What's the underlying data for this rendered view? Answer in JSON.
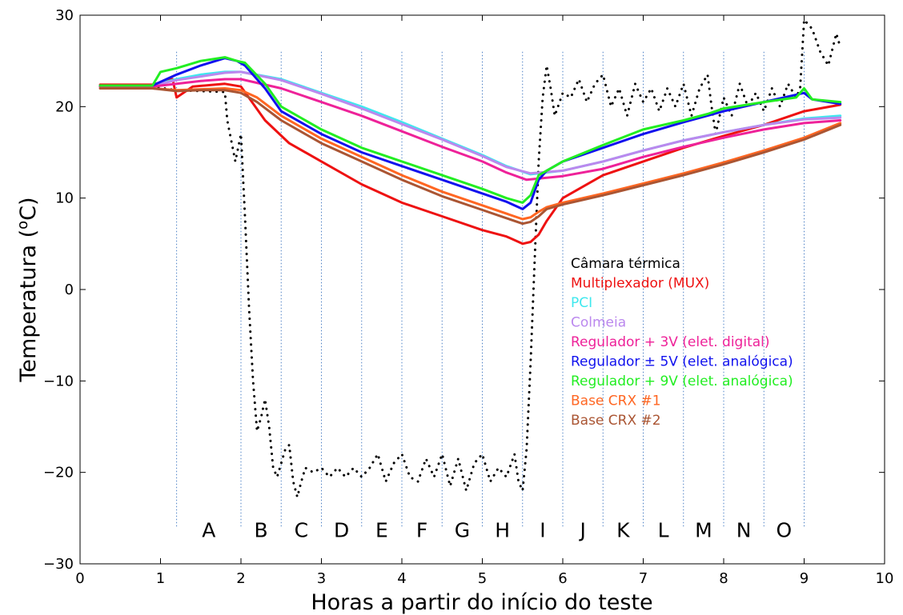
{
  "chart_data": {
    "type": "line",
    "title": "",
    "xlabel": "Horas a partir do início do teste",
    "ylabel_main": "Temperatura (",
    "ylabel_sup": "o",
    "ylabel_tail": "C)",
    "xlim": [
      0,
      10
    ],
    "ylim": [
      -30,
      30
    ],
    "xticks": [
      "0",
      "1",
      "2",
      "3",
      "4",
      "5",
      "6",
      "7",
      "8",
      "9",
      "10"
    ],
    "yticks": [
      "−30",
      "−20",
      "−10",
      "0",
      "10",
      "20",
      "30"
    ],
    "grid": false,
    "phase_boundaries_h": [
      1.2,
      2.0,
      2.5,
      3.0,
      3.5,
      4.0,
      4.5,
      5.0,
      5.5,
      6.0,
      6.5,
      7.0,
      7.5,
      8.0,
      8.5,
      9.0
    ],
    "phase_labels": [
      {
        "label": "A",
        "x": 1.6
      },
      {
        "label": "B",
        "x": 2.25
      },
      {
        "label": "C",
        "x": 2.75
      },
      {
        "label": "D",
        "x": 3.25
      },
      {
        "label": "E",
        "x": 3.75
      },
      {
        "label": "F",
        "x": 4.25
      },
      {
        "label": "G",
        "x": 4.75
      },
      {
        "label": "H",
        "x": 5.25
      },
      {
        "label": "I",
        "x": 5.75
      },
      {
        "label": "J",
        "x": 6.25
      },
      {
        "label": "K",
        "x": 6.75
      },
      {
        "label": "L",
        "x": 7.25
      },
      {
        "label": "M",
        "x": 7.75
      },
      {
        "label": "N",
        "x": 8.25
      },
      {
        "label": "O",
        "x": 8.75
      }
    ],
    "phase_label_y": -26.3,
    "legend_placement": "center-right",
    "series": [
      {
        "name": "Câmara térmica",
        "color": "#000000",
        "style": "dotted",
        "x": [
          0.25,
          0.9,
          1.2,
          1.5,
          1.8,
          1.83,
          1.93,
          2.0,
          2.05,
          2.1,
          2.15,
          2.2,
          2.25,
          2.3,
          2.35,
          2.4,
          2.45,
          2.5,
          2.55,
          2.6,
          2.65,
          2.7,
          2.75,
          2.8,
          2.9,
          3.0,
          3.1,
          3.2,
          3.3,
          3.4,
          3.5,
          3.6,
          3.7,
          3.8,
          3.9,
          4.0,
          4.1,
          4.2,
          4.3,
          4.4,
          4.5,
          4.6,
          4.7,
          4.8,
          4.9,
          5.0,
          5.1,
          5.2,
          5.3,
          5.4,
          5.45,
          5.5,
          5.55,
          5.6,
          5.65,
          5.7,
          5.75,
          5.8,
          5.85,
          5.9,
          6.0,
          6.1,
          6.2,
          6.3,
          6.4,
          6.5,
          6.6,
          6.7,
          6.8,
          6.9,
          7.0,
          7.1,
          7.2,
          7.3,
          7.4,
          7.5,
          7.6,
          7.7,
          7.8,
          7.85,
          7.9,
          8.0,
          8.1,
          8.2,
          8.3,
          8.4,
          8.5,
          8.6,
          8.7,
          8.8,
          8.9,
          8.95,
          9.0,
          9.1,
          9.2,
          9.3,
          9.4,
          9.45
        ],
        "y": [
          22.2,
          22.2,
          21.8,
          21.7,
          21.6,
          18.5,
          14.0,
          17.0,
          8.0,
          -2.0,
          -10.0,
          -15.5,
          -14.0,
          -12.0,
          -15.0,
          -19.5,
          -20.5,
          -19.0,
          -17.5,
          -17.0,
          -21.0,
          -22.7,
          -21.0,
          -19.5,
          -20.0,
          -19.5,
          -20.5,
          -19.5,
          -20.5,
          -19.5,
          -20.5,
          -19.5,
          -18.0,
          -21.0,
          -19.0,
          -18.0,
          -20.5,
          -21.0,
          -18.5,
          -20.5,
          -18.0,
          -21.5,
          -18.5,
          -22.0,
          -19.0,
          -18.0,
          -21.0,
          -19.5,
          -20.5,
          -18.0,
          -21.0,
          -22.0,
          -17.5,
          -8.0,
          3.0,
          14.0,
          21.0,
          24.5,
          22.0,
          19.0,
          21.5,
          21.0,
          23.0,
          20.5,
          22.5,
          23.5,
          20.0,
          22.0,
          19.0,
          22.5,
          20.5,
          22.0,
          19.5,
          22.0,
          20.0,
          22.5,
          19.0,
          22.0,
          23.5,
          20.0,
          17.0,
          21.0,
          19.0,
          22.5,
          20.0,
          21.5,
          19.5,
          22.0,
          20.0,
          22.5,
          21.0,
          22.0,
          29.5,
          28.5,
          26.0,
          24.5,
          28.0,
          26.5
        ]
      },
      {
        "name": "Multiplexador (MUX)",
        "color": "#ee1111",
        "style": "solid",
        "x": [
          0.25,
          0.9,
          1.15,
          1.2,
          1.4,
          1.8,
          2.0,
          2.3,
          2.6,
          3.0,
          3.5,
          4.0,
          4.5,
          5.0,
          5.3,
          5.5,
          5.6,
          5.7,
          5.8,
          6.0,
          6.5,
          7.0,
          7.5,
          8.0,
          8.5,
          9.0,
          9.45
        ],
        "y": [
          22.4,
          22.4,
          23.0,
          21.0,
          22.2,
          22.5,
          22.2,
          18.5,
          16.0,
          14.0,
          11.5,
          9.5,
          8.0,
          6.5,
          5.8,
          5.0,
          5.2,
          6.0,
          7.5,
          10.0,
          12.5,
          14.0,
          15.5,
          16.8,
          18.0,
          19.5,
          20.2
        ]
      },
      {
        "name": "PCI",
        "color": "#3ee8ee",
        "style": "solid",
        "x": [
          0.25,
          0.9,
          1.2,
          1.5,
          1.8,
          2.0,
          2.5,
          3.0,
          3.5,
          4.0,
          4.5,
          5.0,
          5.3,
          5.6,
          6.0,
          6.5,
          7.0,
          7.5,
          8.0,
          8.5,
          9.0,
          9.45
        ],
        "y": [
          22.3,
          22.3,
          23.0,
          23.5,
          23.8,
          23.8,
          23.0,
          21.5,
          20.0,
          18.3,
          16.5,
          14.7,
          13.5,
          12.6,
          13.0,
          14.0,
          15.2,
          16.3,
          17.2,
          18.0,
          18.7,
          19.0
        ]
      },
      {
        "name": "Colmeia",
        "color": "#bb88ee",
        "style": "solid",
        "x": [
          0.25,
          0.9,
          1.2,
          1.5,
          1.8,
          2.0,
          2.5,
          3.0,
          3.5,
          4.0,
          4.5,
          5.0,
          5.3,
          5.6,
          6.0,
          6.5,
          7.0,
          7.5,
          8.0,
          8.5,
          9.0,
          9.45
        ],
        "y": [
          22.3,
          22.3,
          22.9,
          23.3,
          23.7,
          23.8,
          22.9,
          21.4,
          19.8,
          18.1,
          16.4,
          14.6,
          13.4,
          12.7,
          13.0,
          14.0,
          15.2,
          16.3,
          17.2,
          18.0,
          18.6,
          18.8
        ]
      },
      {
        "name": "Regulador + 3V (elet. digital)",
        "color": "#ee2299",
        "style": "solid",
        "x": [
          0.25,
          0.9,
          1.2,
          1.5,
          1.8,
          2.0,
          2.5,
          3.0,
          3.5,
          4.0,
          4.5,
          5.0,
          5.3,
          5.55,
          6.0,
          6.5,
          7.0,
          7.5,
          8.0,
          8.5,
          9.0,
          9.45
        ],
        "y": [
          22.2,
          22.2,
          22.5,
          22.8,
          23.0,
          23.0,
          22.0,
          20.5,
          19.0,
          17.3,
          15.6,
          14.0,
          12.8,
          12.0,
          12.4,
          13.2,
          14.5,
          15.6,
          16.6,
          17.5,
          18.2,
          18.5
        ]
      },
      {
        "name": "Regulador ± 5V (elet. analógica)",
        "color": "#1111ee",
        "style": "solid",
        "x": [
          0.25,
          0.9,
          1.2,
          1.5,
          1.8,
          1.95,
          2.05,
          2.3,
          2.5,
          3.0,
          3.5,
          4.0,
          4.5,
          5.0,
          5.3,
          5.5,
          5.6,
          5.7,
          5.8,
          6.0,
          6.5,
          7.0,
          7.5,
          8.0,
          8.5,
          9.0,
          9.1,
          9.45
        ],
        "y": [
          22.3,
          22.3,
          23.5,
          24.5,
          25.3,
          25.0,
          24.5,
          22.0,
          19.5,
          17.0,
          15.0,
          13.5,
          12.0,
          10.5,
          9.6,
          8.8,
          9.5,
          12.0,
          13.0,
          14.0,
          15.5,
          17.0,
          18.3,
          19.5,
          20.5,
          21.5,
          20.8,
          20.3
        ]
      },
      {
        "name": "Regulador + 9V (elet. analógica)",
        "color": "#22ee22",
        "style": "solid",
        "x": [
          0.25,
          0.9,
          1.0,
          1.2,
          1.5,
          1.8,
          1.95,
          2.05,
          2.3,
          2.5,
          3.0,
          3.5,
          4.0,
          4.5,
          5.0,
          5.3,
          5.5,
          5.6,
          5.7,
          5.8,
          6.0,
          6.5,
          7.0,
          7.5,
          7.8,
          8.0,
          8.5,
          8.9,
          9.0,
          9.1,
          9.45
        ],
        "y": [
          22.3,
          22.3,
          23.8,
          24.2,
          25.0,
          25.4,
          25.0,
          24.8,
          22.5,
          20.0,
          17.5,
          15.5,
          14.0,
          12.5,
          11.0,
          10.0,
          9.5,
          10.3,
          12.5,
          13.0,
          14.0,
          15.8,
          17.5,
          18.5,
          19.2,
          19.8,
          20.5,
          21.0,
          22.0,
          20.8,
          20.5
        ]
      },
      {
        "name": "Base CRX #1",
        "color": "#ff6622",
        "style": "solid",
        "x": [
          0.25,
          0.9,
          1.2,
          1.5,
          1.8,
          2.0,
          2.2,
          2.5,
          3.0,
          3.5,
          4.0,
          4.5,
          5.0,
          5.3,
          5.5,
          5.6,
          5.7,
          5.8,
          6.0,
          6.5,
          7.0,
          7.5,
          8.0,
          8.5,
          9.0,
          9.45
        ],
        "y": [
          22.0,
          22.0,
          21.8,
          21.9,
          22.0,
          21.8,
          21.0,
          19.0,
          16.5,
          14.5,
          12.5,
          10.7,
          9.2,
          8.3,
          7.7,
          7.9,
          8.5,
          9.0,
          9.5,
          10.5,
          11.6,
          12.7,
          13.9,
          15.2,
          16.6,
          18.2
        ]
      },
      {
        "name": "Base CRX #2",
        "color": "#aa5533",
        "style": "solid",
        "x": [
          0.25,
          0.9,
          1.2,
          1.5,
          1.8,
          2.0,
          2.2,
          2.5,
          3.0,
          3.5,
          4.0,
          4.5,
          5.0,
          5.3,
          5.5,
          5.6,
          5.7,
          5.8,
          6.0,
          6.5,
          7.0,
          7.5,
          8.0,
          8.5,
          9.0,
          9.45
        ],
        "y": [
          22.0,
          22.0,
          21.7,
          21.8,
          21.8,
          21.5,
          20.5,
          18.5,
          16.0,
          14.0,
          12.0,
          10.2,
          8.7,
          7.8,
          7.2,
          7.4,
          8.0,
          8.8,
          9.3,
          10.3,
          11.4,
          12.5,
          13.7,
          15.0,
          16.4,
          18.0
        ]
      }
    ]
  }
}
